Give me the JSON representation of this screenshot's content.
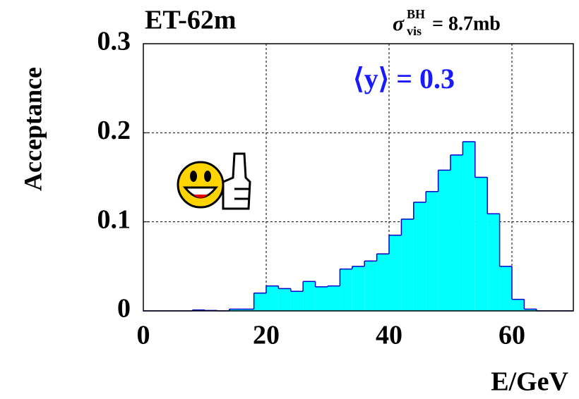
{
  "chart_data": {
    "type": "histogram",
    "title": "ET-62m",
    "xlabel": "E/GeV",
    "ylabel": "Acceptance",
    "annotations": [
      {
        "symbol": "σ",
        "sup": "BH",
        "sub": "vis",
        "text": "= 8.7mb"
      },
      {
        "text": "⟨y⟩ = 0.3",
        "color": "#1a1aff"
      }
    ],
    "bins": [
      0,
      2,
      4,
      6,
      8,
      10,
      12,
      14,
      16,
      18,
      20,
      22,
      24,
      26,
      28,
      30,
      32,
      34,
      36,
      38,
      40,
      42,
      44,
      46,
      48,
      50,
      52,
      54,
      56,
      58,
      60,
      62,
      64,
      66,
      68,
      70
    ],
    "values": [
      0,
      0,
      0,
      0,
      0.001,
      0.0005,
      0,
      0.002,
      0.002,
      0.02,
      0.028,
      0.025,
      0.022,
      0.033,
      0.027,
      0.028,
      0.047,
      0.05,
      0.056,
      0.064,
      0.085,
      0.103,
      0.122,
      0.134,
      0.158,
      0.175,
      0.19,
      0.15,
      0.109,
      0.05,
      0.013,
      0.002,
      0,
      0,
      0
    ],
    "color": "#00ffff",
    "edge_color": "#0000cc",
    "xlim": [
      0,
      70
    ],
    "ylim": [
      0,
      0.3
    ],
    "xticks": [
      0,
      20,
      40,
      60
    ],
    "yticks": [
      0,
      0.1,
      0.2,
      0.3
    ],
    "grid": true
  }
}
